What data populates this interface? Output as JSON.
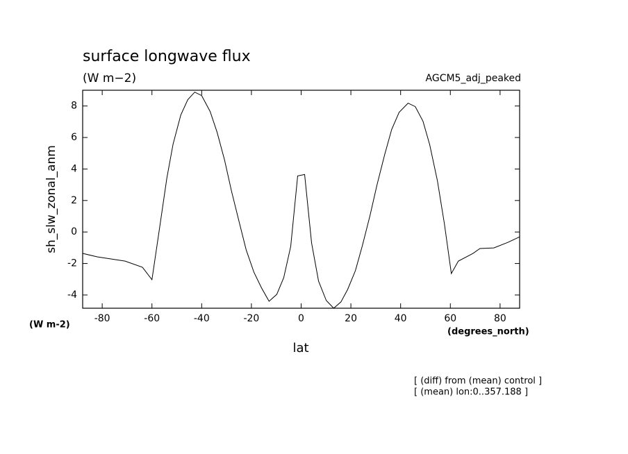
{
  "chart_data": {
    "type": "line",
    "title": "surface longwave flux",
    "subtitle": "(W m−2)",
    "dataset": "AGCM5_adj_peaked",
    "y_label": "sh_slw_zonal_anm",
    "y_units": "(W m-2)",
    "x_label": "lat",
    "x_units": "(degrees_north)",
    "notes": [
      "[ (diff) from (mean) control ]",
      "[ (mean) lon:0..357.188 ]"
    ],
    "color": "#000000",
    "xlim": [
      -87.86,
      87.86
    ],
    "ylim": [
      -4.84,
      9
    ],
    "xticks": [
      -80,
      -60,
      -40,
      -20,
      0,
      20,
      40,
      60,
      80
    ],
    "yticks": [
      -4,
      -2,
      0,
      2,
      4,
      6,
      8
    ],
    "x": [
      -87.86,
      -82,
      -70.8,
      -63.8,
      -60,
      -57,
      -54,
      -51.5,
      -48.4,
      -45.6,
      -42.8,
      -40,
      -36.6,
      -33.8,
      -30.8,
      -28,
      -24.9,
      -22.1,
      -19,
      -15.9,
      -12.9,
      -9.8,
      -7,
      -4.2,
      -1.4,
      1.4,
      4.2,
      7,
      10.1,
      13.1,
      16,
      18.7,
      21.8,
      24.6,
      27.7,
      30.5,
      33.6,
      36.4,
      39.4,
      43,
      45.9,
      49,
      51.7,
      54.8,
      57.6,
      60.4,
      63.2,
      69.1,
      71.9,
      77.5,
      83.1,
      87.86
    ],
    "values": [
      -1.36,
      -1.58,
      -1.85,
      -2.24,
      -3.03,
      0.18,
      3.43,
      5.58,
      7.43,
      8.4,
      8.88,
      8.66,
      7.65,
      6.33,
      4.57,
      2.59,
      0.62,
      -1.14,
      -2.55,
      -3.56,
      -4.4,
      -3.96,
      -2.9,
      -0.92,
      3.56,
      3.65,
      -0.7,
      -3.12,
      -4.35,
      -4.84,
      -4.44,
      -3.65,
      -2.46,
      -0.88,
      1.05,
      2.99,
      4.92,
      6.51,
      7.6,
      8.18,
      7.96,
      7.03,
      5.54,
      3.25,
      0.53,
      -2.64,
      -1.85,
      -1.36,
      -1.05,
      -1.01,
      -0.66,
      -0.31
    ]
  }
}
